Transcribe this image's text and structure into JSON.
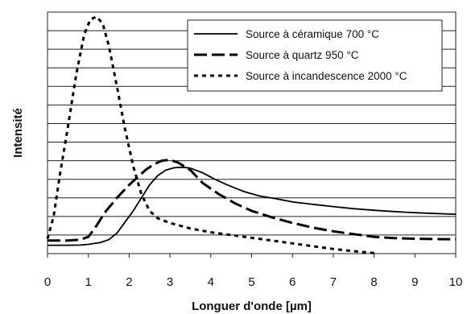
{
  "chart_data": {
    "type": "line",
    "title": "",
    "xlabel": "Longuer d'onde [µm]",
    "ylabel": "Intensité",
    "xlim": [
      0,
      10
    ],
    "x_ticks": [
      "0",
      "1",
      "2",
      "3",
      "4",
      "5",
      "6",
      "7",
      "8",
      "9",
      "10"
    ],
    "grid": "horizontal",
    "legend_position": "top-right",
    "colors": {
      "line": "#000000",
      "grid": "#222222",
      "background": "#ffffff"
    },
    "series": [
      {
        "name": "Source à céramique 700 °C",
        "style": "solid",
        "x": [
          0,
          0.5,
          0.8,
          1,
          1.3,
          1.5,
          1.7,
          1.9,
          2.1,
          2.3,
          2.5,
          2.7,
          2.9,
          3.1,
          3.3,
          3.5,
          3.8,
          4.1,
          4.4,
          4.8,
          5.2,
          5.6,
          6,
          6.5,
          7,
          7.5,
          8,
          8.5,
          9,
          9.5,
          10
        ],
        "y": [
          4.5,
          4.5,
          4.6,
          5,
          6,
          7.5,
          11,
          17,
          23,
          30,
          37,
          42,
          45,
          46.2,
          46.5,
          46,
          43.5,
          40,
          37,
          33.5,
          31,
          29.5,
          27.8,
          26.5,
          25.3,
          24.2,
          23.3,
          22.6,
          22,
          21.6,
          21.2
        ]
      },
      {
        "name": "Source à quartz 950 °C",
        "style": "long-dash",
        "x": [
          0,
          0.5,
          0.8,
          1,
          1.2,
          1.4,
          1.7,
          2,
          2.2,
          2.4,
          2.6,
          2.8,
          3,
          3.2,
          3.5,
          3.8,
          4.2,
          4.6,
          5,
          5.5,
          6,
          6.5,
          7,
          7.5,
          8,
          8.5,
          9,
          9.5,
          10
        ],
        "y": [
          7,
          7,
          7.5,
          9,
          15,
          22,
          30,
          37,
          41,
          45,
          48,
          50,
          50.5,
          49,
          45,
          38,
          32,
          27,
          23,
          19.5,
          16.5,
          14,
          12,
          10.5,
          9,
          8.3,
          8,
          7.8,
          7.7
        ]
      },
      {
        "name": "Source à incandescence 2000 °C",
        "style": "short-dash",
        "x": [
          0,
          0.15,
          0.3,
          0.5,
          0.7,
          0.9,
          1.05,
          1.2,
          1.35,
          1.5,
          1.7,
          1.9,
          2.1,
          2.3,
          2.5,
          2.7,
          3,
          3.5,
          4,
          4.5,
          5,
          5.5,
          6,
          6.5,
          7,
          7.5,
          8
        ],
        "y": [
          8,
          20,
          42,
          68,
          96,
          118,
          126,
          127.5,
          124,
          112,
          90,
          67,
          47,
          32,
          23,
          19,
          16.5,
          13.5,
          11.5,
          10,
          8.5,
          7,
          5.5,
          4,
          2.5,
          1.3,
          0.3
        ]
      }
    ]
  }
}
